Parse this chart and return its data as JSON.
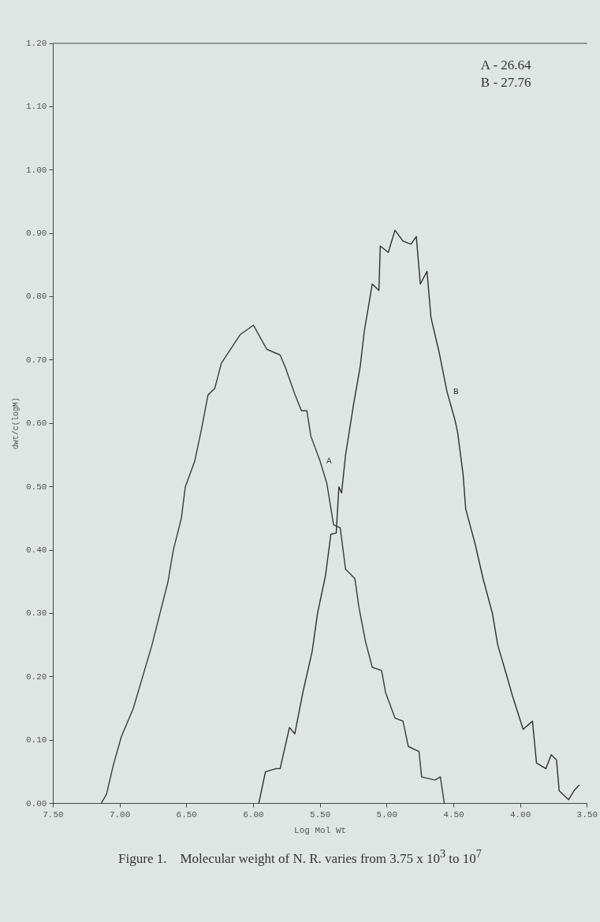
{
  "chart_data": {
    "type": "line",
    "xlabel": "Log Mol Wt",
    "ylabel": "dwt/c(logM)",
    "annotations": [
      "A - 26.64",
      "B - 27.76",
      "Figure 1.    Molecular weight of N. R. varies from 3.75 x 10$^{3}$ to 10$^{7}$"
    ],
    "xlim": [
      7.5,
      3.5
    ],
    "ylim": [
      0,
      1.2
    ],
    "xticks": [
      {
        "value": 7.5,
        "label": "7.50"
      },
      {
        "value": 7,
        "label": "7.00"
      },
      {
        "value": 6.5,
        "label": "6.50"
      },
      {
        "value": 6,
        "label": "6.00"
      },
      {
        "value": 5.5,
        "label": "5.50"
      },
      {
        "value": 5,
        "label": "5.00"
      },
      {
        "value": 4.5,
        "label": "4.50"
      },
      {
        "value": 4,
        "label": "4.00"
      },
      {
        "value": 3.5,
        "label": "3.50"
      }
    ],
    "yticks": [
      {
        "value": 0,
        "label": "0.00"
      },
      {
        "value": 0.1,
        "label": "0.10"
      },
      {
        "value": 0.2,
        "label": "0.20"
      },
      {
        "value": 0.3,
        "label": "0.30"
      },
      {
        "value": 0.4,
        "label": "0.40"
      },
      {
        "value": 0.5,
        "label": "0.50"
      },
      {
        "value": 0.6,
        "label": "0.60"
      },
      {
        "value": 0.7,
        "label": "0.70"
      },
      {
        "value": 0.8,
        "label": "0.80"
      },
      {
        "value": 0.9,
        "label": "0.90"
      },
      {
        "value": 1.0,
        "label": "1.00"
      },
      {
        "value": 1.1,
        "label": "1.10"
      },
      {
        "value": 1.2,
        "label": "1.20"
      }
    ],
    "grid": false,
    "legend": false,
    "marker": "none",
    "line_style": "solid",
    "series": [
      {
        "name": "A",
        "color": "#3a3a3a",
        "x": [
          7.14,
          7.1,
          7.05,
          6.99,
          6.9,
          6.83,
          6.76,
          6.7,
          6.64,
          6.6,
          6.54,
          6.51,
          6.44,
          6.39,
          6.34,
          6.29,
          6.24,
          6.1,
          6.0,
          5.9,
          5.8,
          5.76,
          5.69,
          5.64,
          5.6,
          5.57,
          5.5,
          5.45,
          5.4,
          5.35,
          5.31,
          5.24,
          5.21,
          5.16,
          5.11,
          5.04,
          5.01,
          4.94,
          4.88,
          4.84,
          4.76,
          4.74,
          4.64,
          4.6,
          4.57
        ],
        "values": [
          0,
          0.015,
          0.06,
          0.105,
          0.15,
          0.2,
          0.25,
          0.3,
          0.35,
          0.4,
          0.45,
          0.5,
          0.54,
          0.59,
          0.645,
          0.655,
          0.695,
          0.74,
          0.755,
          0.717,
          0.708,
          0.688,
          0.646,
          0.62,
          0.62,
          0.58,
          0.54,
          0.505,
          0.44,
          0.435,
          0.37,
          0.355,
          0.31,
          0.255,
          0.215,
          0.21,
          0.175,
          0.135,
          0.13,
          0.09,
          0.082,
          0.042,
          0.037,
          0.042,
          0
        ]
      },
      {
        "name": "B",
        "color": "#2e2e2e",
        "x": [
          5.96,
          5.91,
          5.83,
          5.8,
          5.73,
          5.69,
          5.63,
          5.56,
          5.52,
          5.46,
          5.42,
          5.38,
          5.36,
          5.34,
          5.31,
          5.25,
          5.2,
          5.17,
          5.11,
          5.06,
          5.05,
          4.99,
          4.94,
          4.88,
          4.82,
          4.78,
          4.75,
          4.7,
          4.67,
          4.61,
          4.55,
          4.49,
          4.47,
          4.43,
          4.41,
          4.34,
          4.28,
          4.21,
          4.17,
          4.11,
          4.06,
          3.98,
          3.91,
          3.88,
          3.81,
          3.77,
          3.73,
          3.71,
          3.64,
          3.6,
          3.56
        ],
        "values": [
          0,
          0.05,
          0.055,
          0.055,
          0.12,
          0.11,
          0.175,
          0.24,
          0.3,
          0.36,
          0.425,
          0.427,
          0.5,
          0.49,
          0.55,
          0.63,
          0.69,
          0.745,
          0.82,
          0.81,
          0.88,
          0.87,
          0.905,
          0.888,
          0.883,
          0.895,
          0.82,
          0.84,
          0.767,
          0.713,
          0.65,
          0.605,
          0.585,
          0.52,
          0.465,
          0.41,
          0.355,
          0.3,
          0.25,
          0.207,
          0.17,
          0.117,
          0.13,
          0.064,
          0.055,
          0.077,
          0.069,
          0.02,
          0.006,
          0.02,
          0.029
        ]
      }
    ]
  }
}
